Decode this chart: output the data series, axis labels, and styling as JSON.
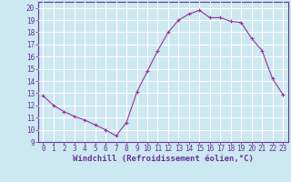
{
  "x": [
    0,
    1,
    2,
    3,
    4,
    5,
    6,
    7,
    8,
    9,
    10,
    11,
    12,
    13,
    14,
    15,
    16,
    17,
    18,
    19,
    20,
    21,
    22,
    23
  ],
  "y": [
    12.8,
    12.0,
    11.5,
    11.1,
    10.8,
    10.4,
    10.0,
    9.5,
    10.6,
    13.1,
    14.8,
    16.5,
    18.0,
    19.0,
    19.5,
    19.8,
    19.2,
    19.2,
    18.9,
    18.8,
    17.5,
    16.5,
    14.2,
    12.9
  ],
  "line_color": "#993399",
  "marker": "+",
  "bg_color": "#cce8f0",
  "grid_color": "#ffffff",
  "xlabel": "Windchill (Refroidissement éolien,°C)",
  "xlabel_color": "#663399",
  "tick_color": "#663399",
  "xlim": [
    -0.5,
    23.5
  ],
  "ylim": [
    9,
    20.5
  ],
  "yticks": [
    9,
    10,
    11,
    12,
    13,
    14,
    15,
    16,
    17,
    18,
    19,
    20
  ],
  "xticks": [
    0,
    1,
    2,
    3,
    4,
    5,
    6,
    7,
    8,
    9,
    10,
    11,
    12,
    13,
    14,
    15,
    16,
    17,
    18,
    19,
    20,
    21,
    22,
    23
  ],
  "xtick_labels": [
    "0",
    "1",
    "2",
    "3",
    "4",
    "5",
    "6",
    "7",
    "8",
    "9",
    "10",
    "11",
    "12",
    "13",
    "14",
    "15",
    "16",
    "17",
    "18",
    "19",
    "20",
    "21",
    "22",
    "23"
  ],
  "spine_color": "#663399",
  "fontsize_ticks": 5.5,
  "fontsize_xlabel": 6.5
}
